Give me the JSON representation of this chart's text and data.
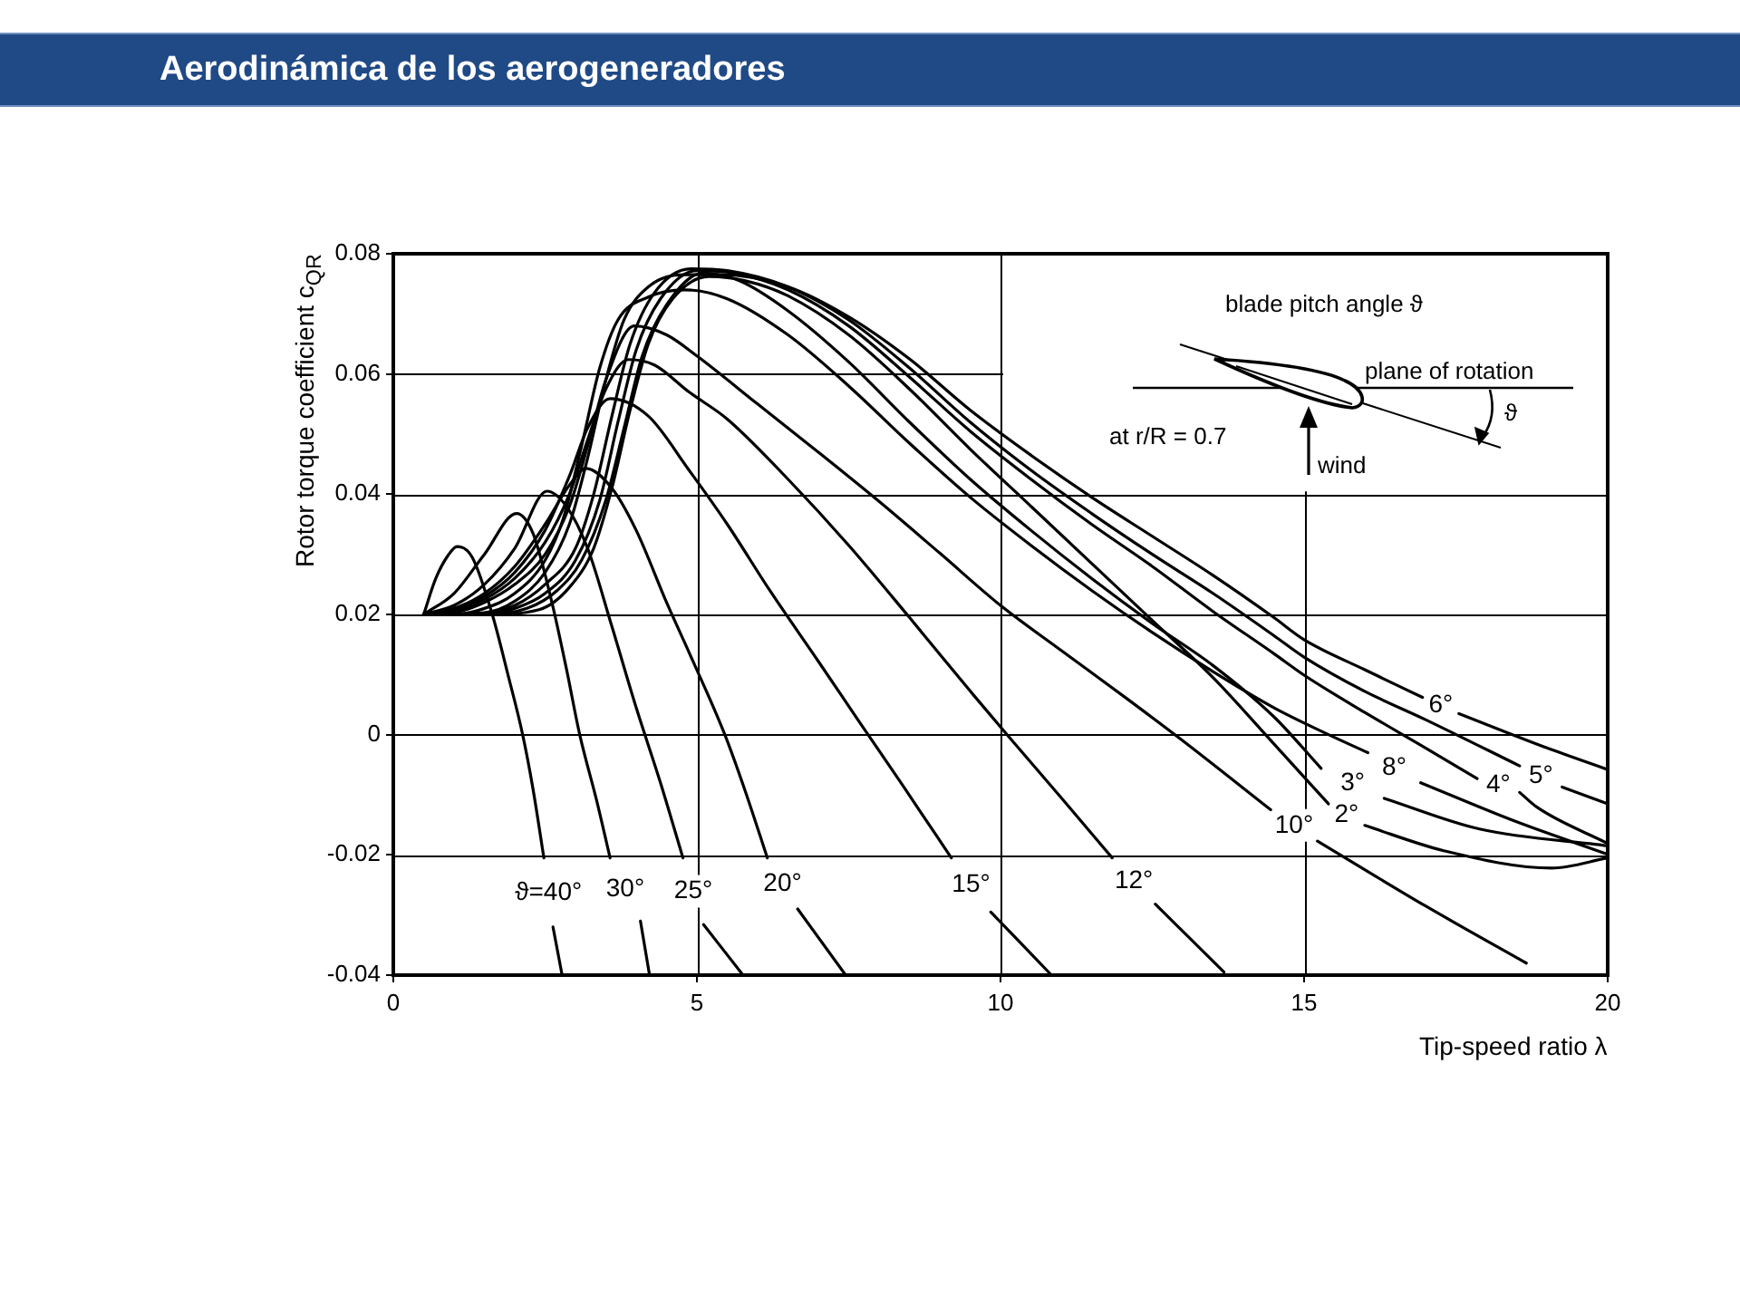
{
  "chart_data": {
    "type": "line",
    "title": "Aerodinámica de los aerogeneradores",
    "xlabel": "Tip-speed ratio λ",
    "ylabel": "Rotor torque coefficient c$_{QR}$",
    "xlim": [
      0,
      20
    ],
    "ylim": [
      -0.04,
      0.08
    ],
    "xticks": [
      0,
      5,
      10,
      15,
      20
    ],
    "yticks": [
      -0.04,
      -0.02,
      0,
      0.02,
      0.04,
      0.06,
      0.08
    ],
    "grid": true,
    "legend": false,
    "marker": "none",
    "line_style": "solid",
    "annotations": [
      "blade pitch angle ϑ",
      "plane of rotation",
      "at r/R = 0.7",
      "wind",
      "ϑ"
    ],
    "series": [
      {
        "name": "ϑ=40°",
        "color": "#000000",
        "x": [
          0.5,
          0.7,
          0.9,
          1.05,
          1.3,
          1.63,
          1.9,
          2.13,
          2.3,
          2.48,
          2.55,
          2.63,
          2.78
        ],
        "values": [
          0.02,
          0.026,
          0.0298,
          0.0313,
          0.0295,
          0.02,
          0.0095,
          0.0,
          -0.009,
          -0.0205,
          null,
          -0.032,
          -0.04
        ]
      },
      {
        "name": "30°",
        "color": "#000000",
        "x": [
          0.5,
          1.0,
          1.5,
          2.03,
          2.3,
          2.6,
          2.85,
          3.07,
          3.35,
          3.57,
          3.8,
          4.07,
          4.22
        ],
        "values": [
          0.02,
          0.0235,
          0.03,
          0.0368,
          0.0335,
          0.0225,
          0.011,
          0.0,
          -0.011,
          -0.0205,
          null,
          -0.031,
          -0.04
        ]
      },
      {
        "name": "25°",
        "color": "#000000",
        "x": [
          0.5,
          1.0,
          1.5,
          2.0,
          2.53,
          2.85,
          3.2,
          3.6,
          4.0,
          4.4,
          4.77,
          4.94,
          5.11,
          5.76
        ],
        "values": [
          0.02,
          0.0215,
          0.025,
          0.031,
          0.0405,
          0.038,
          0.031,
          0.018,
          0.0045,
          -0.008,
          -0.0205,
          null,
          -0.0316,
          -0.04
        ]
      },
      {
        "name": "20°",
        "color": "#000000",
        "x": [
          0.5,
          1.0,
          1.5,
          2.0,
          2.5,
          2.9,
          3.17,
          3.6,
          4.0,
          4.5,
          4.87,
          5.46,
          5.8,
          6.16,
          6.41,
          6.66,
          7.45
        ],
        "values": [
          0.02,
          0.021,
          0.0235,
          0.028,
          0.035,
          0.0415,
          0.0443,
          0.041,
          0.034,
          0.022,
          0.0137,
          0.0,
          -0.0095,
          -0.0205,
          null,
          -0.029,
          -0.04
        ]
      },
      {
        "name": "15°",
        "color": "#000000",
        "x": [
          0.5,
          1.0,
          1.5,
          2.0,
          2.5,
          2.9,
          3.2,
          3.57,
          4.2,
          4.87,
          5.5,
          6.2,
          7.0,
          7.65,
          8.4,
          9.19,
          9.5,
          9.84,
          10.84
        ],
        "values": [
          0.02,
          0.0208,
          0.023,
          0.027,
          0.034,
          0.043,
          0.051,
          0.0559,
          0.053,
          0.044,
          0.035,
          0.024,
          0.0122,
          0.0025,
          -0.0086,
          -0.0205,
          null,
          -0.0295,
          -0.04
        ]
      },
      {
        "name": "12°",
        "color": "#000000",
        "x": [
          0.5,
          1.0,
          1.5,
          2.0,
          2.5,
          2.9,
          3.2,
          3.5,
          3.87,
          4.3,
          4.87,
          5.5,
          6.5,
          7.5,
          8.5,
          9.58,
          10.15,
          11.0,
          11.84,
          12.2,
          12.55,
          13.68
        ],
        "values": [
          0.02,
          0.0205,
          0.0225,
          0.026,
          0.032,
          0.04,
          0.049,
          0.0575,
          0.0624,
          0.0615,
          0.057,
          0.0525,
          0.0425,
          0.0315,
          0.0195,
          0.0063,
          -0.0005,
          -0.0105,
          -0.0205,
          null,
          -0.0282,
          -0.0395
        ]
      },
      {
        "name": "10°",
        "color": "#000000",
        "x": [
          0.5,
          1.0,
          1.5,
          2.0,
          2.5,
          2.9,
          3.2,
          3.5,
          3.97,
          4.5,
          5.0,
          6.0,
          7.0,
          8.0,
          9.0,
          10.0,
          11.0,
          12.0,
          13.0,
          14.45,
          14.84,
          15.22,
          17.0,
          18.66
        ],
        "values": [
          0.02,
          0.0203,
          0.022,
          0.025,
          0.03,
          0.038,
          0.048,
          0.059,
          0.068,
          0.0665,
          0.063,
          0.055,
          0.047,
          0.0388,
          0.0302,
          0.0215,
          0.014,
          0.0066,
          -0.001,
          -0.0125,
          null,
          -0.0177,
          -0.0285,
          -0.038
        ]
      },
      {
        "name": "8°",
        "color": "#000000",
        "x": [
          0.5,
          1.0,
          1.5,
          2.0,
          2.5,
          2.8,
          3.1,
          3.4,
          3.7,
          4.2,
          4.8,
          5.5,
          6.5,
          7.5,
          8.5,
          9.5,
          10.5,
          11.5,
          12.5,
          13.5,
          14.5,
          15.3,
          16.05,
          16.48,
          16.92,
          18.5,
          20.0
        ],
        "values": [
          0.02,
          0.02,
          0.021,
          0.0235,
          0.029,
          0.036,
          0.048,
          0.061,
          0.069,
          0.0728,
          0.074,
          0.0725,
          0.0665,
          0.058,
          0.0485,
          0.0395,
          0.0315,
          0.024,
          0.017,
          0.0105,
          0.0045,
          0.0005,
          -0.003,
          null,
          -0.008,
          -0.0145,
          -0.0199
        ]
      },
      {
        "name": "6°",
        "color": "#000000",
        "x": [
          0.5,
          1.5,
          2.0,
          2.5,
          2.9,
          3.2,
          3.5,
          3.8,
          4.2,
          4.8,
          5.4,
          6.5,
          7.5,
          8.5,
          9.5,
          10.5,
          11.5,
          12.5,
          13.5,
          14.5,
          15.0,
          16.0,
          16.95,
          17.25,
          17.55,
          19.0,
          20.0
        ],
        "values": [
          0.02,
          0.0203,
          0.0222,
          0.027,
          0.035,
          0.046,
          0.059,
          0.069,
          0.0745,
          0.0765,
          0.0765,
          0.0745,
          0.0695,
          0.0625,
          0.054,
          0.0465,
          0.0395,
          0.033,
          0.0265,
          0.0195,
          0.0158,
          0.0108,
          0.0062,
          null,
          0.0035,
          -0.0022,
          -0.0058
        ]
      },
      {
        "name": "5°",
        "color": "#000000",
        "x": [
          0.5,
          1.5,
          2.0,
          2.5,
          3.0,
          3.3,
          3.6,
          3.9,
          4.3,
          4.9,
          5.5,
          6.5,
          7.5,
          8.5,
          9.5,
          10.5,
          11.5,
          12.5,
          13.5,
          14.5,
          15.0,
          16.0,
          17.0,
          18.55,
          18.9,
          19.25,
          20.0
        ],
        "values": [
          0.02,
          0.0202,
          0.0215,
          0.025,
          0.031,
          0.04,
          0.053,
          0.065,
          0.0735,
          0.0775,
          0.0772,
          0.0745,
          0.069,
          0.061,
          0.052,
          0.044,
          0.0368,
          0.03,
          0.0235,
          0.0165,
          0.0129,
          0.0072,
          0.0025,
          -0.0052,
          null,
          -0.0087,
          -0.0115
        ]
      },
      {
        "name": "4°",
        "color": "#000000",
        "x": [
          0.5,
          1.5,
          2.0,
          2.5,
          3.0,
          3.4,
          3.7,
          4.0,
          4.4,
          5.0,
          5.6,
          6.5,
          7.5,
          8.5,
          9.5,
          10.5,
          11.5,
          12.5,
          13.5,
          14.5,
          15.0,
          16.0,
          17.0,
          17.85,
          18.2,
          18.55,
          18.84,
          20.0
        ],
        "values": [
          0.02,
          0.0201,
          0.021,
          0.0235,
          0.029,
          0.039,
          0.052,
          0.064,
          0.0725,
          0.0772,
          0.0768,
          0.074,
          0.068,
          0.0595,
          0.0505,
          0.0425,
          0.035,
          0.028,
          0.0205,
          0.0135,
          0.0099,
          0.0037,
          -0.0022,
          -0.0073,
          null,
          -0.0096,
          -0.0121,
          -0.0181
        ]
      },
      {
        "name": "3°",
        "color": "#000000",
        "x": [
          0.5,
          1.5,
          2.2,
          2.7,
          3.1,
          3.5,
          3.8,
          4.1,
          4.5,
          5.1,
          5.7,
          6.5,
          7.5,
          8.5,
          9.5,
          10.5,
          11.5,
          12.5,
          13.5,
          14.5,
          15.28,
          15.8,
          16.32,
          17.89,
          20.0
        ],
        "values": [
          0.02,
          0.02,
          0.021,
          0.024,
          0.029,
          0.039,
          0.051,
          0.063,
          0.0715,
          0.0768,
          0.0755,
          0.0705,
          0.062,
          0.052,
          0.0425,
          0.034,
          0.026,
          0.0185,
          0.0115,
          0.003,
          -0.0056,
          null,
          -0.0106,
          -0.0157,
          -0.0185
        ]
      },
      {
        "name": "2°",
        "color": "#000000",
        "x": [
          0.5,
          1.5,
          2.4,
          2.9,
          3.3,
          3.6,
          3.9,
          4.2,
          4.6,
          5.2,
          5.8,
          6.5,
          7.5,
          8.5,
          9.5,
          10.5,
          11.5,
          12.5,
          13.5,
          14.5,
          15.4,
          15.7,
          16.0,
          17.3,
          19.08,
          20.0
        ],
        "values": [
          0.02,
          0.02,
          0.0208,
          0.0245,
          0.031,
          0.041,
          0.054,
          0.065,
          0.0725,
          0.0762,
          0.0755,
          0.073,
          0.0665,
          0.0575,
          0.0475,
          0.038,
          0.0285,
          0.019,
          0.0095,
          -0.0015,
          -0.0115,
          null,
          -0.0151,
          -0.0193,
          -0.0222,
          -0.0205
        ]
      }
    ]
  }
}
